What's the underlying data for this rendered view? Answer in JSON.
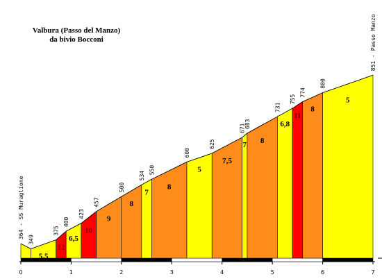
{
  "chart_data": {
    "type": "profile",
    "title": "Valbura (Passo del Manzo)",
    "subtitle": "da bivio Bocconi",
    "start_label": "364 - SS Muraglione",
    "end_label": "851 - Passo Manzo",
    "x": [
      0,
      0.2,
      0.7,
      0.9,
      1.2,
      1.5,
      2.0,
      2.4,
      2.6,
      3.3,
      3.8,
      4.4,
      4.5,
      5.1,
      5.4,
      5.6,
      6.0,
      7.0
    ],
    "values": [
      364,
      349,
      375,
      400,
      423,
      457,
      500,
      534,
      550,
      600,
      625,
      671,
      683,
      731,
      755,
      774,
      800,
      851
    ],
    "segments": {
      "values": [
        null,
        5.5,
        12,
        6.5,
        10,
        9,
        8,
        7,
        8,
        5,
        7.5,
        7,
        8,
        6.8,
        11,
        8,
        5
      ],
      "value_labels": [
        null,
        "5,5",
        "12",
        "6,5",
        "10",
        "9",
        "8",
        "7",
        "8",
        "5",
        "7,5",
        "7",
        "8",
        "6,8",
        "11",
        "8",
        "5"
      ],
      "colors": [
        "#ffff00",
        "#ffff00",
        "#ff0000",
        "#ffff00",
        "#ff0000",
        "#ff8c1a",
        "#ff8c1a",
        "#ffff00",
        "#ff8c1a",
        "#ffff00",
        "#ff8c1a",
        "#ffff00",
        "#ff8c1a",
        "#ffff00",
        "#ff0000",
        "#ff8c1a",
        "#ffff00"
      ]
    },
    "xlim": [
      0,
      7
    ],
    "xticks": [
      0,
      1,
      2,
      3,
      4,
      5,
      6,
      7
    ],
    "ylim": [
      322,
      1068
    ]
  }
}
